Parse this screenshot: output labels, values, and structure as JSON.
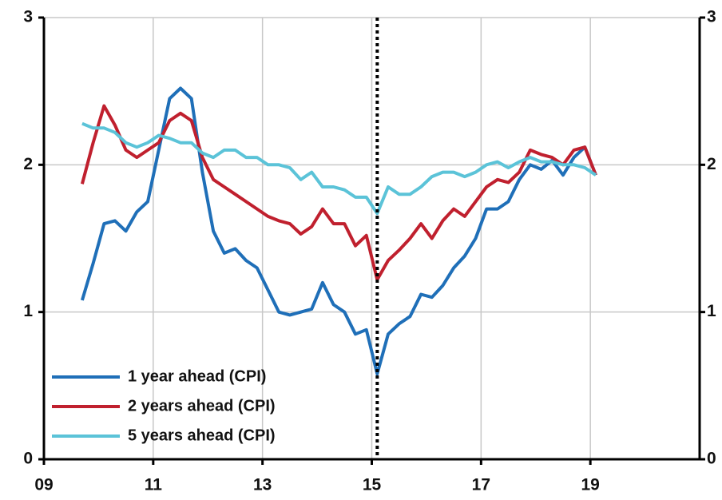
{
  "chart_data": {
    "type": "line",
    "x": [
      2009.7,
      2009.9,
      2010.1,
      2010.3,
      2010.5,
      2010.7,
      2010.9,
      2011.1,
      2011.3,
      2011.5,
      2011.7,
      2011.9,
      2012.1,
      2012.3,
      2012.5,
      2012.7,
      2012.9,
      2013.1,
      2013.3,
      2013.5,
      2013.7,
      2013.9,
      2014.1,
      2014.3,
      2014.5,
      2014.7,
      2014.9,
      2015.1,
      2015.3,
      2015.5,
      2015.7,
      2015.9,
      2016.1,
      2016.3,
      2016.5,
      2016.7,
      2016.9,
      2017.1,
      2017.3,
      2017.5,
      2017.7,
      2017.9,
      2018.1,
      2018.3,
      2018.5,
      2018.7,
      2018.9,
      2019.1
    ],
    "series": [
      {
        "name": "1 year ahead (CPI)",
        "color": "#1f6fb8",
        "values": [
          1.08,
          1.33,
          1.6,
          1.62,
          1.55,
          1.68,
          1.75,
          2.1,
          2.45,
          2.52,
          2.45,
          1.95,
          1.55,
          1.4,
          1.43,
          1.35,
          1.3,
          1.15,
          1.0,
          0.98,
          1.0,
          1.02,
          1.2,
          1.05,
          1.0,
          0.85,
          0.88,
          0.58,
          0.85,
          0.92,
          0.97,
          1.12,
          1.1,
          1.18,
          1.3,
          1.38,
          1.5,
          1.7,
          1.7,
          1.75,
          1.9,
          2.0,
          1.97,
          2.03,
          1.93,
          2.05,
          2.12,
          1.93
        ]
      },
      {
        "name": "2 years ahead (CPI)",
        "color": "#c0202e",
        "values": [
          1.87,
          2.15,
          2.4,
          2.27,
          2.1,
          2.05,
          2.1,
          2.15,
          2.3,
          2.35,
          2.3,
          2.05,
          1.9,
          1.85,
          1.8,
          1.75,
          1.7,
          1.65,
          1.62,
          1.6,
          1.53,
          1.58,
          1.7,
          1.6,
          1.6,
          1.45,
          1.52,
          1.22,
          1.35,
          1.42,
          1.5,
          1.6,
          1.5,
          1.62,
          1.7,
          1.65,
          1.75,
          1.85,
          1.9,
          1.88,
          1.95,
          2.1,
          2.07,
          2.05,
          2.0,
          2.1,
          2.12,
          1.93
        ]
      },
      {
        "name": "5 years ahead (CPI)",
        "color": "#5bc3d8",
        "values": [
          2.28,
          2.25,
          2.25,
          2.22,
          2.15,
          2.12,
          2.15,
          2.2,
          2.18,
          2.15,
          2.15,
          2.08,
          2.05,
          2.1,
          2.1,
          2.05,
          2.05,
          2.0,
          2.0,
          1.98,
          1.9,
          1.95,
          1.85,
          1.85,
          1.83,
          1.78,
          1.78,
          1.67,
          1.85,
          1.8,
          1.8,
          1.85,
          1.92,
          1.95,
          1.95,
          1.92,
          1.95,
          2.0,
          2.02,
          1.98,
          2.02,
          2.05,
          2.02,
          2.02,
          2.0,
          2.0,
          1.98,
          1.93
        ]
      }
    ],
    "xlim": [
      2009,
      2021
    ],
    "xticks": [
      {
        "value": 2009,
        "label": "09"
      },
      {
        "value": 2011,
        "label": "11"
      },
      {
        "value": 2013,
        "label": "13"
      },
      {
        "value": 2015,
        "label": "15"
      },
      {
        "value": 2017,
        "label": "17"
      },
      {
        "value": 2019,
        "label": "19"
      }
    ],
    "ylim": [
      0,
      3
    ],
    "yticks": [
      0,
      1,
      2,
      3
    ],
    "y2lim": [
      0,
      3
    ],
    "y2ticks": [
      0,
      1,
      2,
      3
    ],
    "vline_x": 2015.1,
    "grid": true,
    "legend": "lower left"
  }
}
